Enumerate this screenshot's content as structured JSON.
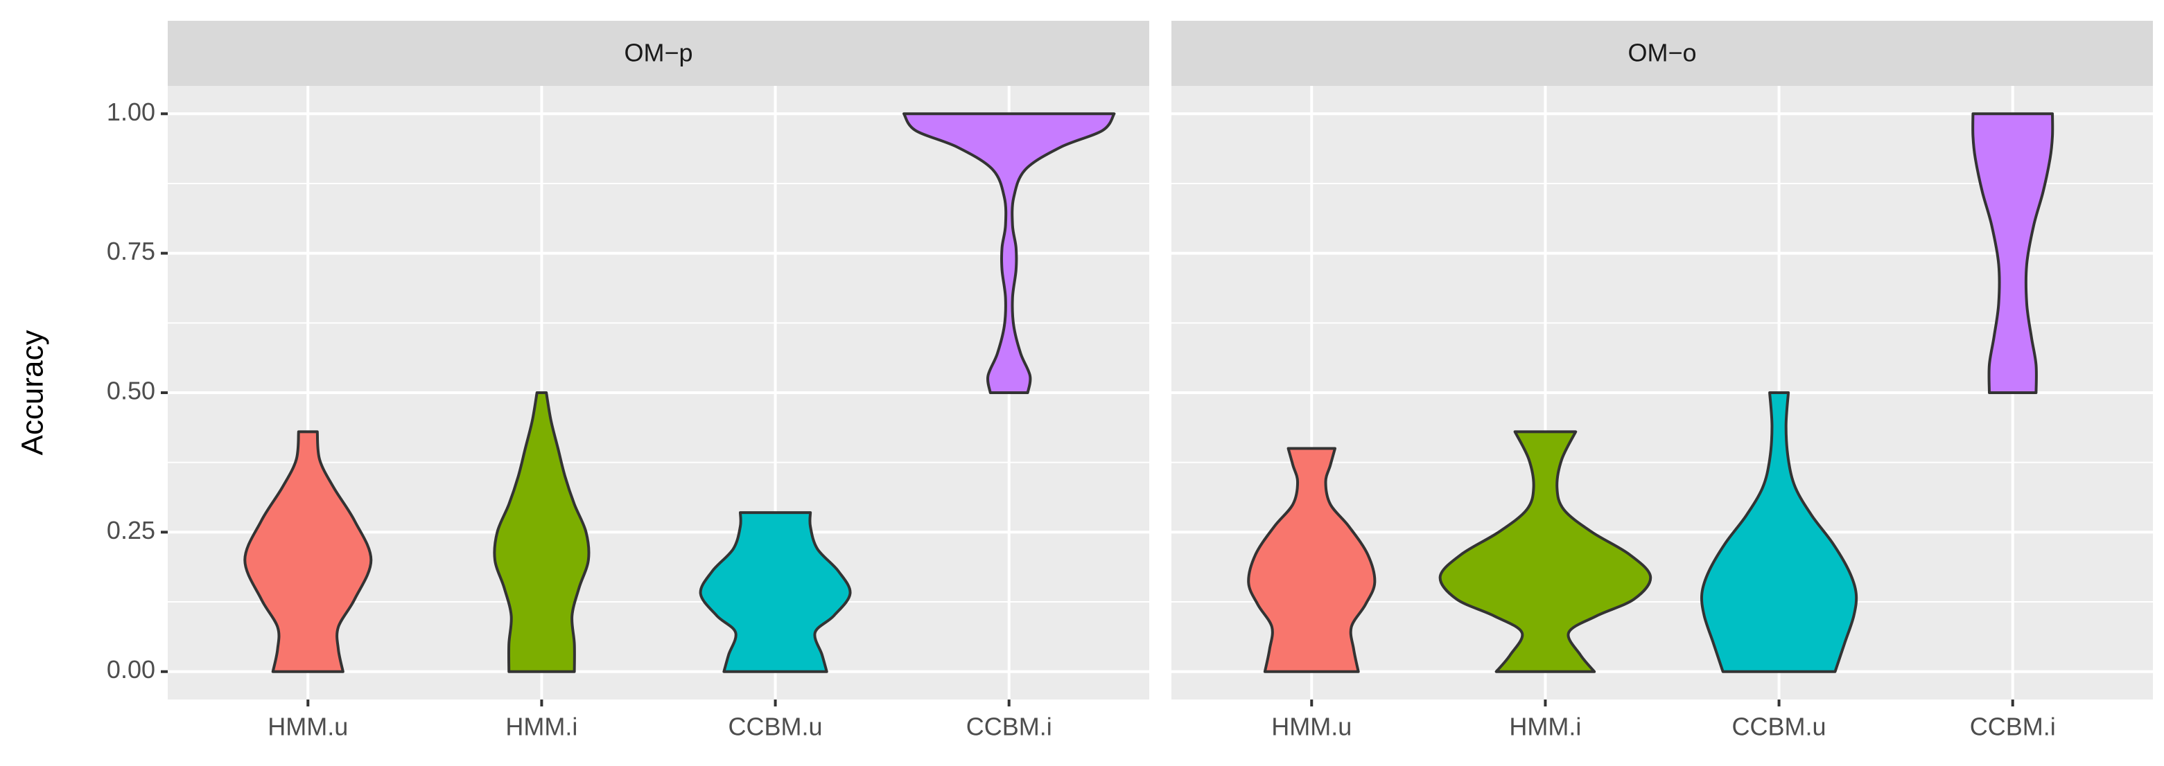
{
  "chart_data": [
    {
      "type": "violin",
      "title": "OM−p",
      "ylabel": "Accuracy",
      "categories": [
        "HMM.u",
        "HMM.i",
        "CCBM.u",
        "CCBM.i"
      ],
      "colors": [
        "#F8766D",
        "#7CAE00",
        "#00BFC4",
        "#C77CFF"
      ],
      "violins": [
        {
          "y": [
            0,
            0.04,
            0.08,
            0.13,
            0.2,
            0.27,
            0.33,
            0.38,
            0.43
          ],
          "width": [
            0.15,
            0.13,
            0.13,
            0.2,
            0.27,
            0.2,
            0.11,
            0.05,
            0.04
          ]
        },
        {
          "y": [
            0,
            0.05,
            0.1,
            0.15,
            0.2,
            0.25,
            0.3,
            0.35,
            0.4,
            0.45,
            0.5
          ],
          "width": [
            0.14,
            0.14,
            0.13,
            0.16,
            0.2,
            0.19,
            0.14,
            0.1,
            0.07,
            0.04,
            0.02
          ]
        },
        {
          "y": [
            0,
            0.03,
            0.07,
            0.1,
            0.14,
            0.18,
            0.22,
            0.26,
            0.285
          ],
          "width": [
            0.22,
            0.2,
            0.17,
            0.25,
            0.32,
            0.27,
            0.18,
            0.15,
            0.15
          ]
        },
        {
          "y": [
            0.5,
            0.53,
            0.57,
            0.62,
            0.67,
            0.72,
            0.76,
            0.8,
            0.85,
            0.9,
            0.94,
            0.97,
            1
          ],
          "width": [
            0.08,
            0.09,
            0.05,
            0.02,
            0.015,
            0.03,
            0.03,
            0.015,
            0.02,
            0.07,
            0.22,
            0.4,
            0.45
          ]
        }
      ],
      "ylim": [
        -0.05,
        1.05
      ],
      "yticks": [
        {
          "value": 0,
          "label": "0.00"
        },
        {
          "value": 0.25,
          "label": "0.25"
        },
        {
          "value": 0.5,
          "label": "0.50"
        },
        {
          "value": 0.75,
          "label": "0.75"
        },
        {
          "value": 1,
          "label": "1.00"
        }
      ],
      "grid": true
    },
    {
      "type": "violin",
      "title": "OM−o",
      "categories": [
        "HMM.u",
        "HMM.i",
        "CCBM.u",
        "CCBM.i"
      ],
      "colors": [
        "#F8766D",
        "#7CAE00",
        "#00BFC4",
        "#C77CFF"
      ],
      "violins": [
        {
          "y": [
            0,
            0.04,
            0.08,
            0.12,
            0.16,
            0.21,
            0.26,
            0.3,
            0.34,
            0.37,
            0.4
          ],
          "width": [
            0.2,
            0.18,
            0.17,
            0.23,
            0.27,
            0.24,
            0.16,
            0.08,
            0.06,
            0.08,
            0.1
          ]
        },
        {
          "y": [
            0,
            0.03,
            0.07,
            0.1,
            0.13,
            0.17,
            0.21,
            0.25,
            0.29,
            0.33,
            0.38,
            0.43
          ],
          "width": [
            0.21,
            0.15,
            0.1,
            0.22,
            0.38,
            0.45,
            0.36,
            0.2,
            0.08,
            0.05,
            0.07,
            0.13
          ]
        },
        {
          "y": [
            0,
            0.05,
            0.1,
            0.14,
            0.18,
            0.23,
            0.28,
            0.33,
            0.38,
            0.44,
            0.5
          ],
          "width": [
            0.24,
            0.28,
            0.32,
            0.33,
            0.3,
            0.23,
            0.14,
            0.07,
            0.04,
            0.03,
            0.04
          ]
        },
        {
          "y": [
            0.5,
            0.55,
            0.6,
            0.66,
            0.73,
            0.8,
            0.86,
            0.92,
            0.96,
            1
          ],
          "width": [
            0.1,
            0.1,
            0.08,
            0.06,
            0.06,
            0.09,
            0.13,
            0.16,
            0.17,
            0.17
          ]
        }
      ],
      "ylim": [
        -0.05,
        1.05
      ],
      "yticks": [
        0,
        0.25,
        0.5,
        0.75,
        1
      ],
      "grid": true
    }
  ]
}
